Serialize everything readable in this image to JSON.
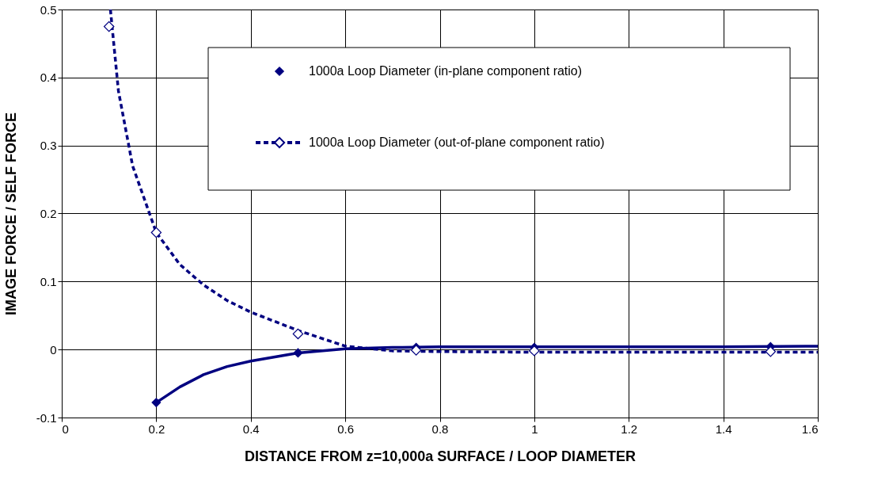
{
  "chart_data": {
    "type": "scatter",
    "xlabel": "DISTANCE FROM z=10,000a SURFACE / LOOP DIAMETER",
    "ylabel": "IMAGE FORCE / SELF FORCE",
    "xlim": [
      0,
      1.6
    ],
    "xticks": [
      0,
      0.2,
      0.4,
      0.6,
      0.8,
      1,
      1.2,
      1.4,
      1.6
    ],
    "ylim": [
      -0.1,
      0.5
    ],
    "yticks": [
      -0.1,
      0,
      0.1,
      0.2,
      0.3,
      0.4,
      0.5
    ],
    "grid": true,
    "legend": "top right",
    "marker": "diamond",
    "series": [
      {
        "name": "1000a Loop Diameter (in-plane component ratio)",
        "color": "#000080",
        "x": [
          0.2,
          0.5,
          0.75,
          1.0,
          1.5
        ],
        "values": [
          -0.078,
          -0.005,
          0.003,
          0.003,
          0.004
        ]
      },
      {
        "name": "1000a Loop Diameter (out-of-plane component ratio)",
        "color": "#000080",
        "line_style": "dashed",
        "x": [
          0.1,
          0.2,
          0.5,
          0.75,
          1.0,
          1.5
        ],
        "values": [
          0.475,
          0.172,
          0.023,
          -0.001,
          -0.002,
          -0.003
        ]
      },
      {
        "type": "line",
        "marker": "none",
        "color": "#000080",
        "line_style": "solid",
        "x": [
          0.2,
          0.25,
          0.3,
          0.35,
          0.4,
          0.5,
          0.6,
          0.7,
          0.8,
          1.0,
          1.2,
          1.4,
          1.6
        ],
        "values": [
          -0.078,
          -0.055,
          -0.037,
          -0.025,
          -0.017,
          -0.005,
          0.001,
          0.003,
          0.004,
          0.004,
          0.004,
          0.004,
          0.005
        ]
      },
      {
        "type": "line",
        "marker": "none",
        "color": "#000080",
        "line_style": "dashed",
        "x": [
          0.103,
          0.12,
          0.15,
          0.2,
          0.25,
          0.3,
          0.35,
          0.4,
          0.5,
          0.6,
          0.7,
          0.8,
          1.0,
          1.2,
          1.6
        ],
        "values": [
          0.5,
          0.38,
          0.27,
          0.172,
          0.125,
          0.095,
          0.072,
          0.055,
          0.028,
          0.005,
          -0.002,
          -0.003,
          -0.004,
          -0.004,
          -0.004
        ]
      }
    ]
  }
}
